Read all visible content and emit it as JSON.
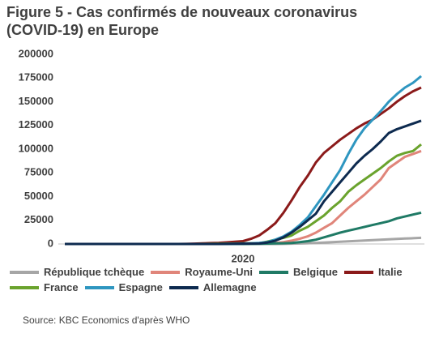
{
  "chart_data": {
    "type": "line",
    "title": "Figure 5 - Cas confirmés de nouveaux coronavirus (COVID-19) en Europe",
    "source": "Source: KBC Economics d'après WHO",
    "categories": [
      null,
      null,
      null,
      null,
      null,
      null,
      null,
      null,
      null,
      null,
      null,
      null,
      null,
      null,
      null,
      null,
      null,
      null,
      null,
      null,
      null,
      null,
      "2020",
      null,
      null,
      null,
      null,
      null,
      null,
      null,
      null,
      null,
      null,
      null,
      null,
      null,
      null,
      null,
      null,
      null,
      null,
      null,
      null,
      null,
      null
    ],
    "ylim": [
      0,
      200000
    ],
    "yticks": [
      0,
      25000,
      50000,
      75000,
      100000,
      125000,
      150000,
      175000,
      200000
    ],
    "grid": false,
    "series": [
      {
        "name": "République tchèque",
        "color": "#a6a6a6",
        "values": [
          0,
          0,
          0,
          0,
          0,
          0,
          0,
          0,
          0,
          0,
          0,
          0,
          0,
          0,
          0,
          0,
          0,
          0,
          0,
          0,
          0,
          0,
          0,
          0,
          0,
          0,
          0,
          100,
          300,
          500,
          800,
          1100,
          1500,
          1900,
          2400,
          2800,
          3200,
          3700,
          4100,
          4500,
          4900,
          5300,
          5700,
          6100,
          6500
        ]
      },
      {
        "name": "Royaume-Uni",
        "color": "#e0857a",
        "values": [
          0,
          0,
          0,
          0,
          0,
          0,
          0,
          0,
          0,
          0,
          0,
          0,
          0,
          0,
          0,
          0,
          0,
          0,
          0,
          0,
          0,
          0,
          100,
          300,
          500,
          700,
          1000,
          2000,
          3500,
          5500,
          8000,
          12000,
          17000,
          22000,
          30000,
          38000,
          45000,
          52000,
          60000,
          68000,
          80000,
          86000,
          92000,
          95000,
          98000
        ]
      },
      {
        "name": "Belgique",
        "color": "#1f7a65",
        "values": [
          0,
          0,
          0,
          0,
          0,
          0,
          0,
          0,
          0,
          0,
          0,
          0,
          0,
          0,
          0,
          0,
          0,
          0,
          0,
          0,
          0,
          0,
          0,
          100,
          200,
          400,
          600,
          800,
          1000,
          2000,
          3000,
          4500,
          7000,
          9500,
          12000,
          14000,
          16000,
          18000,
          20000,
          22000,
          24000,
          27000,
          29000,
          31000,
          33000
        ]
      },
      {
        "name": "Italie",
        "color": "#8b1a1a",
        "values": [
          0,
          0,
          0,
          0,
          0,
          0,
          0,
          0,
          0,
          0,
          0,
          0,
          0,
          0,
          0,
          100,
          300,
          600,
          900,
          1200,
          1700,
          2300,
          3000,
          5500,
          9000,
          15000,
          22000,
          33000,
          46000,
          60000,
          72000,
          86000,
          96000,
          103000,
          110000,
          116000,
          122000,
          127000,
          131000,
          137000,
          143000,
          150000,
          156000,
          161000,
          165000
        ]
      },
      {
        "name": "France",
        "color": "#6aa32d",
        "values": [
          0,
          0,
          0,
          0,
          0,
          0,
          0,
          0,
          0,
          0,
          0,
          0,
          0,
          0,
          0,
          0,
          0,
          100,
          200,
          300,
          400,
          500,
          600,
          650,
          700,
          2500,
          4500,
          6500,
          9000,
          14000,
          18000,
          24000,
          30000,
          38000,
          45000,
          55000,
          62000,
          68000,
          74000,
          80000,
          87000,
          93000,
          96000,
          98000,
          105000
        ]
      },
      {
        "name": "Espagne",
        "color": "#2e96c0",
        "values": [
          0,
          0,
          0,
          0,
          0,
          0,
          0,
          0,
          0,
          0,
          0,
          0,
          0,
          0,
          0,
          0,
          0,
          0,
          0,
          0,
          100,
          200,
          400,
          700,
          1000,
          2000,
          4500,
          8000,
          13000,
          20000,
          28000,
          40000,
          52000,
          65000,
          78000,
          95000,
          110000,
          122000,
          131000,
          140000,
          150000,
          158000,
          165000,
          170000,
          177000
        ]
      },
      {
        "name": "Allemagne",
        "color": "#0d2a4f",
        "values": [
          0,
          0,
          0,
          0,
          0,
          0,
          0,
          0,
          0,
          0,
          0,
          0,
          0,
          0,
          0,
          0,
          0,
          0,
          0,
          0,
          100,
          200,
          300,
          400,
          500,
          1500,
          3500,
          7000,
          12000,
          18000,
          25000,
          32000,
          45000,
          55000,
          65000,
          75000,
          85000,
          93000,
          100000,
          108000,
          117000,
          121000,
          124000,
          127000,
          130000
        ]
      }
    ]
  }
}
